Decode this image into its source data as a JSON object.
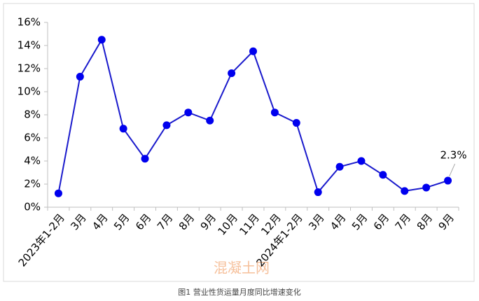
{
  "chart_data": {
    "type": "line",
    "categories": [
      "2023年1-2月",
      "3月",
      "4月",
      "5月",
      "6月",
      "7月",
      "8月",
      "9月",
      "10月",
      "11月",
      "12月",
      "2024年1-2月",
      "3月",
      "4月",
      "5月",
      "6月",
      "7月",
      "8月",
      "9月"
    ],
    "series": [
      {
        "color": "#1a1acc",
        "values": [
          1.2,
          11.3,
          14.5,
          6.8,
          4.2,
          7.1,
          8.2,
          7.5,
          11.6,
          13.5,
          8.2,
          7.3,
          1.3,
          3.5,
          4.0,
          2.8,
          1.4,
          1.7,
          2.3
        ],
        "value_labels": [
          null,
          null,
          null,
          null,
          null,
          null,
          null,
          null,
          null,
          null,
          null,
          null,
          null,
          null,
          null,
          null,
          null,
          null,
          "2.3%"
        ]
      }
    ],
    "ylim": [
      0,
      16
    ],
    "yticks": [
      {
        "value": 0,
        "label": "0%"
      },
      {
        "value": 2,
        "label": "2%"
      },
      {
        "value": 4,
        "label": "4%"
      },
      {
        "value": 6,
        "label": "6%"
      },
      {
        "value": 8,
        "label": "8%"
      },
      {
        "value": 10,
        "label": "10%"
      },
      {
        "value": 12,
        "label": "12%"
      },
      {
        "value": 14,
        "label": "14%"
      },
      {
        "value": 16,
        "label": "16%"
      }
    ],
    "grid": false,
    "watermark": "混凝土网",
    "caption": "图1   营业性货运量月度同比增速变化"
  }
}
